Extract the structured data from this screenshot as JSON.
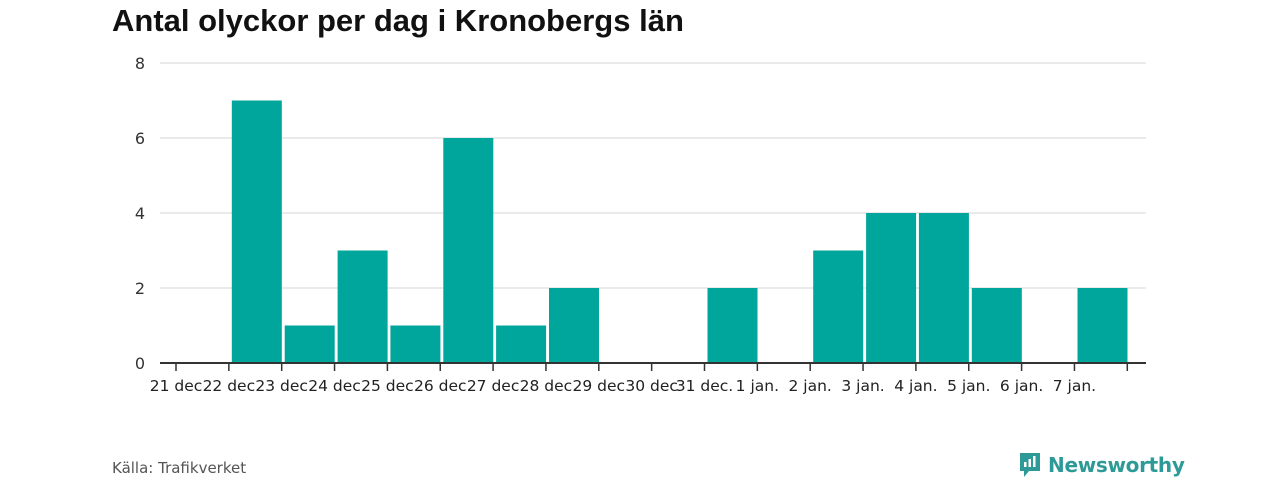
{
  "title": "Antal olyckor per dag i Kronobergs län",
  "source": "Källa: Trafikverket",
  "brand": {
    "name": "Newsworthy",
    "icon": "newsworthy-logo-icon",
    "color": "#2e9a97"
  },
  "chart_data": {
    "type": "bar",
    "title": "Antal olyckor per dag i Kronobergs län",
    "xlabel": "",
    "ylabel": "",
    "categories": [
      "21 dec",
      "22 dec",
      "23 dec",
      "24 dec",
      "25 dec",
      "26 dec",
      "27 dec",
      "28 dec",
      "29 dec",
      "30 dec",
      "31 dec.",
      "1 jan.",
      "2 jan.",
      "3 jan.",
      "4 jan.",
      "5 jan.",
      "6 jan.",
      "7 jan."
    ],
    "values": [
      null,
      7,
      1,
      3,
      1,
      6,
      1,
      2,
      null,
      null,
      2,
      null,
      3,
      4,
      4,
      2,
      null,
      2
    ],
    "ylim": [
      0,
      8
    ],
    "yticks": [
      0,
      2,
      4,
      6,
      8
    ],
    "grid": true,
    "bar_color": "#00a59b"
  }
}
